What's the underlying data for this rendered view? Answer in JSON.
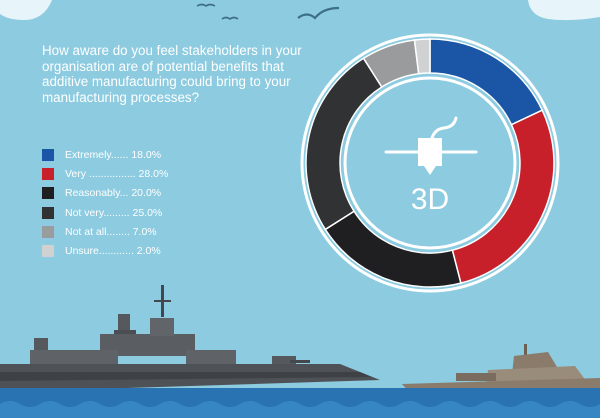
{
  "question": "How aware do you feel stakeholders in your organisation are of potential benefits that additive manufacturing could bring to your manufacturing processes?",
  "chart_data": {
    "type": "pie",
    "categories": [
      "Extremely",
      "Very",
      "Reasonably",
      "Not very",
      "Not at all",
      "Unsure"
    ],
    "values": [
      18.0,
      28.0,
      20.0,
      25.0,
      7.0,
      2.0
    ],
    "legend_labels": [
      "Extremely...... 18.0%",
      "Very ................ 28.0%",
      "Reasonably... 20.0%",
      "Not very......... 25.0%",
      "Not at all........ 7.0%",
      "Unsure............ 2.0%"
    ],
    "colors": [
      "#1b56a6",
      "#c8202a",
      "#1f1f22",
      "#303234",
      "#9a9b9d",
      "#cfd1d3"
    ],
    "center_label": "3D",
    "legend_position": "left"
  }
}
